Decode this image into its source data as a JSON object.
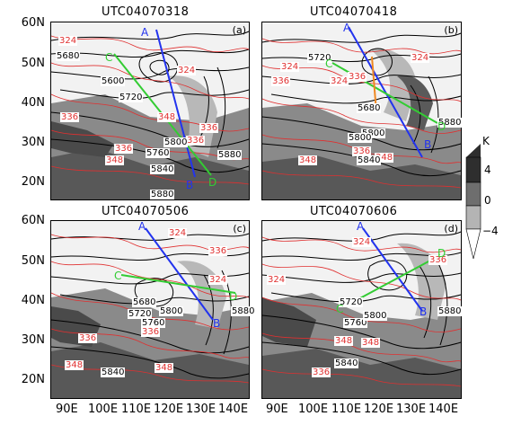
{
  "panels": [
    {
      "title": "UTC04070318",
      "tag": "(a)",
      "labels": {
        "red": [
          "324",
          "324",
          "336",
          "348",
          "336",
          "336",
          "348",
          "336"
        ],
        "black": [
          "5680",
          "5600",
          "5720",
          "5800",
          "5760",
          "5840",
          "5880",
          "5880"
        ],
        "lines": [
          "A",
          "B",
          "C",
          "D"
        ]
      }
    },
    {
      "title": "UTC04070418",
      "tag": "(b)",
      "labels": {
        "red": [
          "324",
          "324",
          "336",
          "336",
          "336",
          "348",
          "348",
          "324"
        ],
        "black": [
          "5720",
          "5800",
          "5680",
          "5800",
          "5840",
          "5880"
        ],
        "lines": [
          "A",
          "B",
          "C",
          "D"
        ]
      }
    },
    {
      "title": "UTC04070506",
      "tag": "(c)",
      "labels": {
        "red": [
          "324",
          "324",
          "336",
          "336",
          "348",
          "348",
          "336"
        ],
        "black": [
          "5680",
          "5720",
          "5760",
          "5800",
          "5840",
          "5880"
        ],
        "lines": [
          "A",
          "B",
          "C",
          "D"
        ]
      }
    },
    {
      "title": "UTC04070606",
      "tag": "(d)",
      "labels": {
        "red": [
          "324",
          "324",
          "336",
          "348",
          "348",
          "336"
        ],
        "black": [
          "5720",
          "5760",
          "5800",
          "5840",
          "5880"
        ],
        "lines": [
          "A",
          "B",
          "C",
          "D"
        ]
      }
    }
  ],
  "y_axis": [
    "60N",
    "50N",
    "40N",
    "30N",
    "20N"
  ],
  "x_axis": [
    "90E",
    "100E",
    "110E",
    "120E",
    "130E",
    "140E"
  ],
  "colorbar": {
    "unit": "K",
    "ticks": [
      "4",
      "0",
      "−4"
    ]
  }
}
